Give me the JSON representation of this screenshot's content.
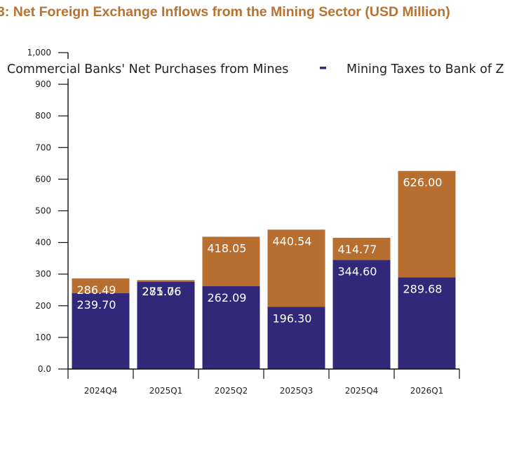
{
  "chart_data": {
    "type": "bar",
    "stacked": true,
    "title": "3: Net Foreign Exchange Inflows from the Mining Sector (USD Million)",
    "xlabel": "",
    "ylabel": "",
    "ylim": [
      0,
      1000
    ],
    "y_ticks": [
      "0.0",
      "100",
      "200",
      "300",
      "400",
      "500",
      "600",
      "700",
      "800",
      "900",
      "1,000"
    ],
    "categories": [
      "2024Q4",
      "2025Q1",
      "2025Q2",
      "2025Q3",
      "2025Q4",
      "2026Q1"
    ],
    "series": [
      {
        "name": "Commercial  Banks' Net Purchases from Mines",
        "color": "#32287a",
        "values": [
          286.49,
          281.06,
          262.09,
          196.3,
          344.6,
          289.68
        ],
        "labels": [
          "286.49",
          "281.06",
          "262.09",
          "196.30",
          "344.60",
          "289.68"
        ]
      },
      {
        "name": "Mining Taxes to Bank of Z",
        "color": "#b86e2f",
        "values": [
          239.7,
          275.76,
          418.05,
          440.54,
          414.77,
          626.0
        ],
        "labels": [
          "239.70",
          "275.76",
          "418.05",
          "440.54",
          "414.77",
          "626.00"
        ]
      }
    ],
    "grid": false,
    "legend_position": "top"
  }
}
